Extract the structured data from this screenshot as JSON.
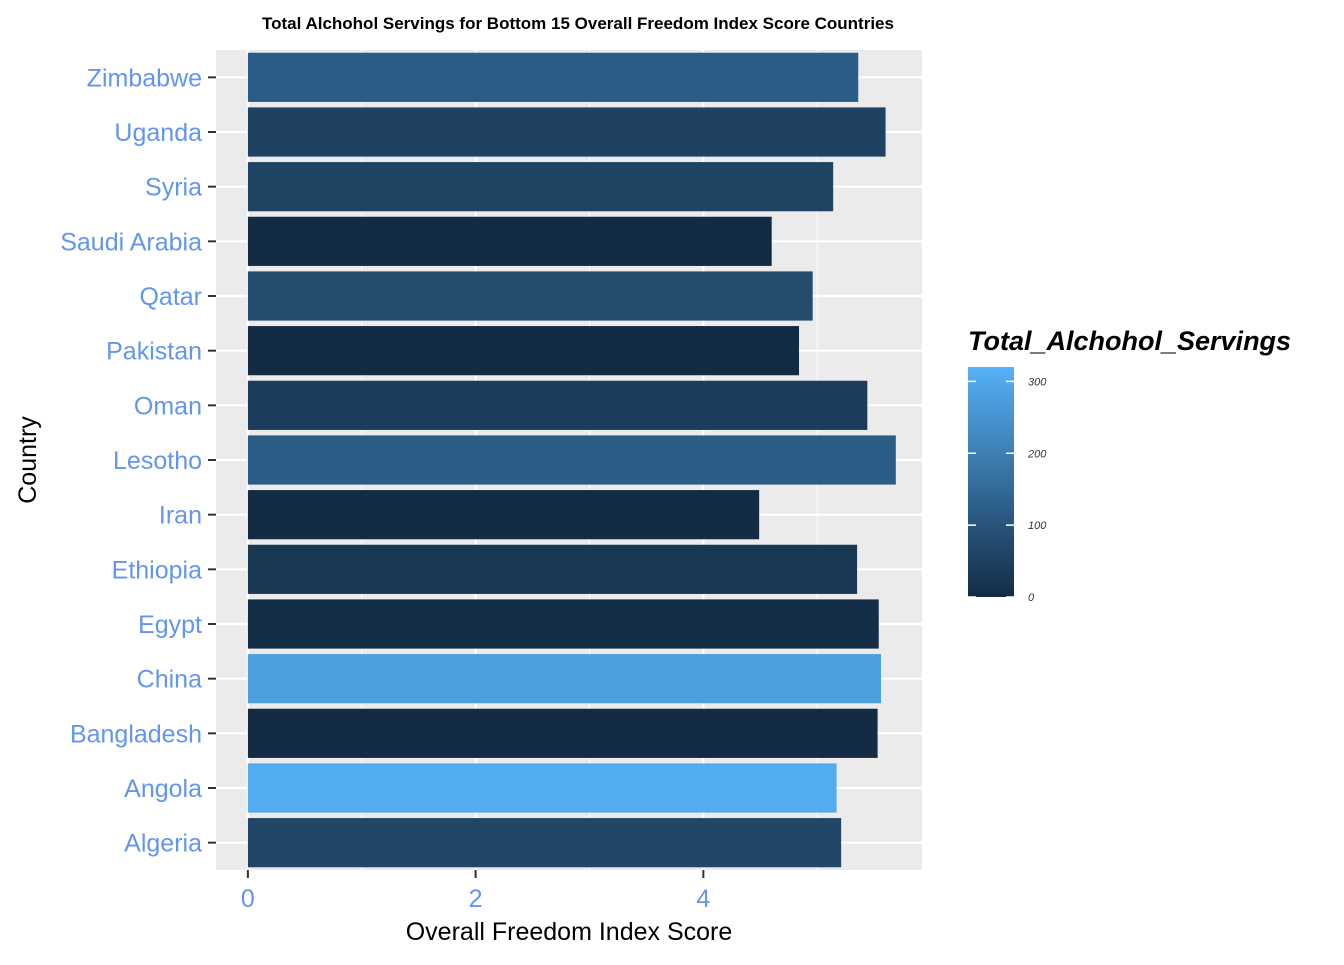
{
  "chart_data": {
    "type": "bar",
    "orientation": "horizontal",
    "title": "Total Alchohol Servings for Bottom 15 Overall Freedom Index Score Countries",
    "xlabel": "Overall Freedom Index Score",
    "ylabel": "Country",
    "xlim": [
      -0.28,
      5.92
    ],
    "xticks": [
      0,
      2,
      4
    ],
    "grid": true,
    "categories": [
      "Algeria",
      "Angola",
      "Bangladesh",
      "China",
      "Egypt",
      "Ethiopia",
      "Iran",
      "Lesotho",
      "Oman",
      "Pakistan",
      "Qatar",
      "Saudi Arabia",
      "Syria",
      "Uganda",
      "Zimbabwe"
    ],
    "values": [
      5.21,
      5.17,
      5.53,
      5.56,
      5.54,
      5.35,
      4.49,
      5.69,
      5.44,
      4.84,
      4.96,
      4.6,
      5.14,
      5.6,
      5.36
    ],
    "fill_variable": "Total_Alchohol_Servings",
    "fill_values": [
      65,
      308,
      0,
      276,
      7,
      30,
      0,
      120,
      40,
      0,
      80,
      0,
      57,
      55,
      117
    ],
    "legend": {
      "title": "Total_Alchohol_Servings",
      "position": "right",
      "ticks": [
        0,
        100,
        200,
        300
      ],
      "range": [
        0,
        320
      ],
      "color_low": "#132B43",
      "color_high": "#56B1F7"
    },
    "colors": {
      "panel_background": "#EBEBEB",
      "grid": "#FFFFFF",
      "tick_label": "#6495ED",
      "tick_mark": "#333333"
    }
  }
}
